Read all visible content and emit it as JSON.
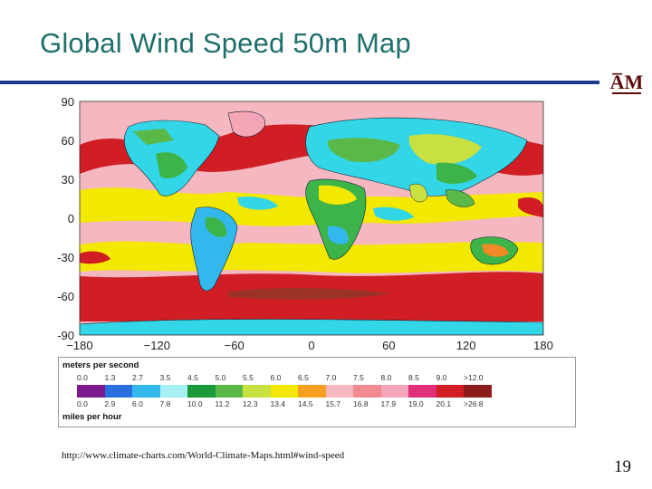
{
  "slide": {
    "title": "Global Wind Speed 50m Map",
    "source": "http://www.climate-charts.com/World-Climate-Maps.html#wind-speed",
    "page_number": "19",
    "logo_text": "ATM"
  },
  "map": {
    "lat_ticks": [
      "90",
      "60",
      "30",
      "0",
      "-30",
      "-60",
      "-90"
    ],
    "lon_ticks": [
      "−180",
      "−120",
      "−60",
      "0",
      "60",
      "120",
      "180"
    ],
    "colors": {
      "ocean_band_red": "#d01e24",
      "pink": "#f5b7c0",
      "yellow": "#f2e800",
      "cyan": "#33d6e6",
      "green": "#3cb44a",
      "orange": "#f08a24"
    }
  },
  "legend": {
    "top_label": "meters per second",
    "bottom_label": "miles per hour",
    "ms_values": [
      "0.0",
      "1.3",
      "2.7",
      "3.5",
      "4.5",
      "5.0",
      "5.5",
      "6.0",
      "6.5",
      "7.0",
      "7.5",
      "8.0",
      "8.5",
      "9.0",
      ">12.0"
    ],
    "mph_values": [
      "0.0",
      "2.9",
      "6.0",
      "7.8",
      "10.0",
      "11.2",
      "12.3",
      "13.4",
      "14.5",
      "15.7",
      "16.8",
      "17.9",
      "19.0",
      "20.1",
      ">26.8"
    ],
    "swatch_colors": [
      "#7a1a8c",
      "#2a6fe0",
      "#33b8ee",
      "#a8f0f4",
      "#1a9a3a",
      "#5ab848",
      "#c8e040",
      "#f2e800",
      "#f5a020",
      "#f5b7c0",
      "#f08a90",
      "#f5a5b8",
      "#e0307a",
      "#d01e24",
      "#8a1c1c"
    ]
  }
}
